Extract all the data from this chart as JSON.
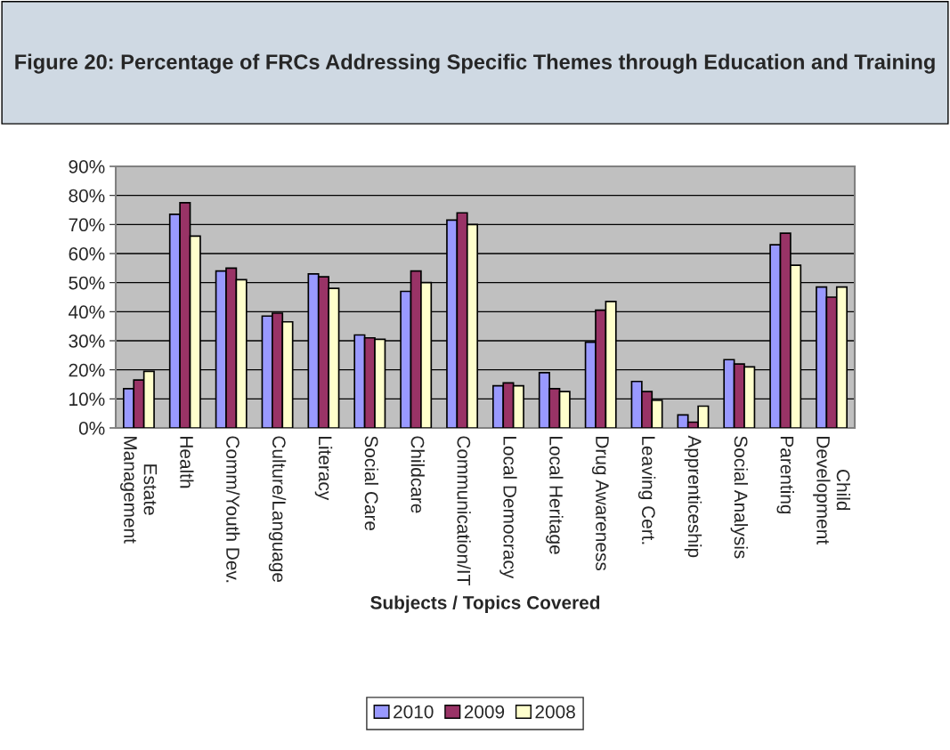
{
  "chart_data": {
    "type": "bar",
    "title": "Figure 20: Percentage of FRCs Addressing Specific Themes through Education and Training",
    "xlabel": "Subjects / Topics Covered",
    "categories": [
      "Estate\nManagement",
      "Health",
      "Comm/Youth Dev.",
      "Culture/Language",
      "Literacy",
      "Social Care",
      "Childcare",
      "Communication/IT",
      "Local Democracy",
      "Local Heritage",
      "Drug Awareness",
      "Leaving Cert.",
      "Apprenticeship",
      "Social Analysis",
      "Parenting",
      "Child\nDevelopment"
    ],
    "series": [
      {
        "name": "2010",
        "color": "#9999ff",
        "values": [
          13.5,
          73.5,
          54,
          38.5,
          53,
          32,
          47,
          71.5,
          14.5,
          19,
          29.5,
          16,
          4.5,
          23.5,
          63,
          48.5
        ]
      },
      {
        "name": "2009",
        "color": "#993366",
        "values": [
          16.5,
          77.5,
          55,
          39.5,
          52,
          31,
          54,
          74,
          15.5,
          13.5,
          40.5,
          12.5,
          2,
          22,
          67,
          45
        ]
      },
      {
        "name": "2008",
        "color": "#ffffcc",
        "values": [
          19.5,
          66,
          51,
          36.5,
          48,
          30.5,
          50,
          70,
          14.5,
          12.5,
          43.5,
          9.5,
          7.5,
          21,
          56,
          48.5
        ]
      }
    ],
    "ylim": [
      0,
      90
    ],
    "yticks": [
      {
        "value": 0,
        "label": "0%"
      },
      {
        "value": 10,
        "label": "10%"
      },
      {
        "value": 20,
        "label": "20%"
      },
      {
        "value": 30,
        "label": "30%"
      },
      {
        "value": 40,
        "label": "40%"
      },
      {
        "value": 50,
        "label": "50%"
      },
      {
        "value": 60,
        "label": "60%"
      },
      {
        "value": 70,
        "label": "70%"
      },
      {
        "value": 80,
        "label": "80%"
      },
      {
        "value": 90,
        "label": "90%"
      }
    ],
    "grid": "y",
    "legend": "bottom"
  }
}
